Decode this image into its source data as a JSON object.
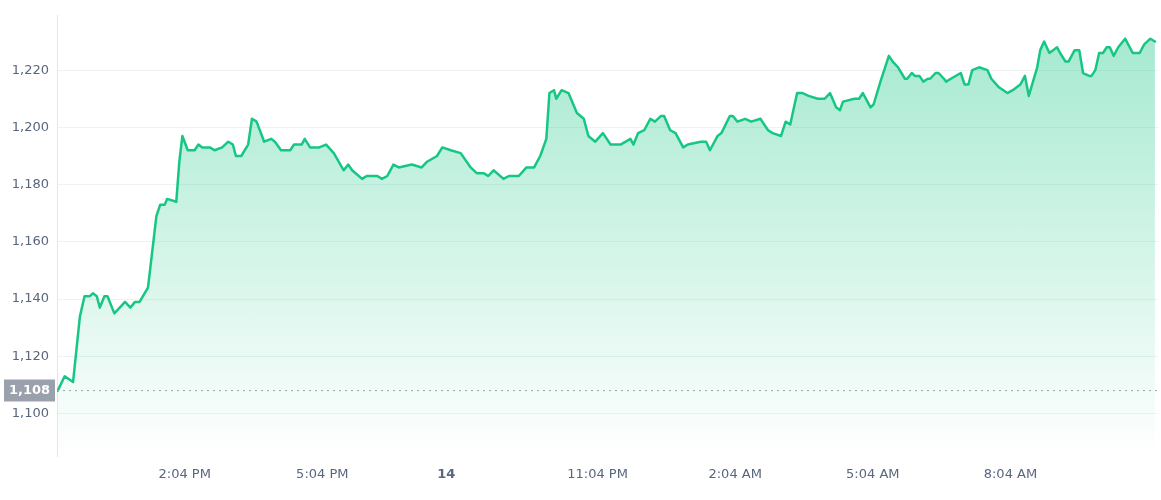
{
  "chart_data": {
    "type": "area",
    "x": [
      "--05-13T11:18",
      "--05-13T11:27",
      "--05-13T11:38",
      "--05-13T11:47",
      "--05-13T11:53",
      "--05-13T12:00",
      "--05-13T12:04",
      "--05-13T12:09",
      "--05-13T12:13",
      "--05-13T12:19",
      "--05-13T12:23",
      "--05-13T12:32",
      "--05-13T12:46",
      "--05-13T12:53",
      "--05-13T12:59",
      "--05-13T13:05",
      "--05-13T13:16",
      "--05-13T13:27",
      "--05-13T13:32",
      "--05-13T13:38",
      "--05-13T13:41",
      "--05-13T13:53",
      "--05-13T13:57",
      "--05-13T14:01",
      "--05-13T14:08",
      "--05-13T14:17",
      "--05-13T14:22",
      "--05-13T14:27",
      "--05-13T14:37",
      "--05-13T14:43",
      "--05-13T14:53",
      "--05-13T15:01",
      "--05-13T15:07",
      "--05-13T15:11",
      "--05-13T15:18",
      "--05-13T15:27",
      "--05-13T15:32",
      "--05-13T15:38",
      "--05-13T15:48",
      "--05-13T15:57",
      "--05-13T16:02",
      "--05-13T16:10",
      "--05-13T16:17",
      "--05-13T16:22",
      "--05-13T16:27",
      "--05-13T16:37",
      "--05-13T16:41",
      "--05-13T16:48",
      "--05-13T17:00",
      "--05-13T17:09",
      "--05-13T17:19",
      "--05-13T17:32",
      "--05-13T17:38",
      "--05-13T17:43",
      "--05-13T17:56",
      "--05-13T18:02",
      "--05-13T18:16",
      "--05-13T18:22",
      "--05-13T18:29",
      "--05-13T18:37",
      "--05-13T18:44",
      "--05-13T19:01",
      "--05-13T19:14",
      "--05-13T19:21",
      "--05-13T19:34",
      "--05-13T19:41",
      "--05-13T19:52",
      "--05-13T20:05",
      "--05-13T20:18",
      "--05-13T20:26",
      "--05-13T20:35",
      "--05-13T20:41",
      "--05-13T20:48",
      "--05-13T21:01",
      "--05-13T21:08",
      "--05-13T21:21",
      "--05-13T21:31",
      "--05-13T21:41",
      "--05-13T21:49",
      "--05-13T21:57",
      "--05-13T22:01",
      "--05-13T22:07",
      "--05-13T22:10",
      "--05-13T22:17",
      "--05-13T22:26",
      "--05-13T22:37",
      "--05-13T22:46",
      "--05-13T22:52",
      "--05-13T23:01",
      "--05-13T23:11",
      "--05-13T23:21",
      "--05-13T23:34",
      "--05-13T23:47",
      "--05-13T23:51",
      "--05-13T23:57",
      "--05-14T00:05",
      "--05-14T00:13",
      "--05-14T00:19",
      "--05-14T00:27",
      "--05-14T00:31",
      "--05-14T00:39",
      "--05-14T00:46",
      "--05-14T00:56",
      "--05-14T01:02",
      "--05-14T01:19",
      "--05-14T01:26",
      "--05-14T01:31",
      "--05-14T01:41",
      "--05-14T01:46",
      "--05-14T01:57",
      "--05-14T02:01",
      "--05-14T02:07",
      "--05-14T02:17",
      "--05-14T02:25",
      "--05-14T02:37",
      "--05-14T02:47",
      "--05-14T02:53",
      "--05-14T03:04",
      "--05-14T03:10",
      "--05-14T03:16",
      "--05-14T03:25",
      "--05-14T03:32",
      "--05-14T03:40",
      "--05-14T03:52",
      "--05-14T04:01",
      "--05-14T04:08",
      "--05-14T04:16",
      "--05-14T04:21",
      "--05-14T04:25",
      "--05-14T04:40",
      "--05-14T04:46",
      "--05-14T04:51",
      "--05-14T05:01",
      "--05-14T05:05",
      "--05-14T05:14",
      "--05-14T05:25",
      "--05-14T05:30",
      "--05-14T05:37",
      "--05-14T05:46",
      "--05-14T05:49",
      "--05-14T05:55",
      "--05-14T05:59",
      "--05-14T06:05",
      "--05-14T06:10",
      "--05-14T06:16",
      "--05-14T06:19",
      "--05-14T06:26",
      "--05-14T06:30",
      "--05-14T06:37",
      "--05-14T06:40",
      "--05-14T06:46",
      "--05-14T06:59",
      "--05-14T07:04",
      "--05-14T07:09",
      "--05-14T07:14",
      "--05-14T07:23",
      "--05-14T07:34",
      "--05-14T07:39",
      "--05-14T07:49",
      "--05-14T08:00",
      "--05-14T08:07",
      "--05-14T08:17",
      "--05-14T08:23",
      "--05-14T08:28",
      "--05-14T08:39",
      "--05-14T08:43",
      "--05-14T08:48",
      "--05-14T08:55",
      "--05-14T09:05",
      "--05-14T09:09",
      "--05-14T09:16",
      "--05-14T09:20",
      "--05-14T09:28",
      "--05-14T09:34",
      "--05-14T09:39",
      "--05-14T09:47",
      "--05-14T09:50",
      "--05-14T09:55",
      "--05-14T10:00",
      "--05-14T10:05",
      "--05-14T10:10",
      "--05-14T10:14",
      "--05-14T10:19",
      "--05-14T10:25",
      "--05-14T10:34",
      "--05-14T10:44",
      "--05-14T10:53",
      "--05-14T10:59",
      "--05-14T11:07",
      "--05-14T11:13"
    ],
    "series": [
      {
        "color": "#16c784",
        "values": [
          1108,
          1113,
          1111,
          1134,
          1141,
          1141,
          1142,
          1141,
          1137,
          1141,
          1141,
          1135,
          1139,
          1137,
          1139,
          1139,
          1144,
          1169,
          1173,
          1173,
          1175,
          1174,
          1188,
          1197,
          1192,
          1192,
          1194,
          1193,
          1193,
          1192,
          1193,
          1195,
          1194,
          1190,
          1190,
          1194,
          1203,
          1202,
          1195,
          1196,
          1195,
          1192,
          1192,
          1192,
          1194,
          1194,
          1196,
          1193,
          1193,
          1194,
          1191,
          1185,
          1187,
          1185,
          1182,
          1183,
          1183,
          1182,
          1183,
          1187,
          1186,
          1187,
          1186,
          1188,
          1190,
          1193,
          1192,
          1191,
          1186,
          1184,
          1184,
          1183,
          1185,
          1182,
          1183,
          1183,
          1186,
          1186,
          1190,
          1196,
          1212,
          1213,
          1210,
          1213,
          1212,
          1205,
          1203,
          1197,
          1195,
          1198,
          1194,
          1194,
          1196,
          1194,
          1198,
          1199,
          1203,
          1202,
          1204,
          1204,
          1199,
          1198,
          1193,
          1194,
          1195,
          1195,
          1192,
          1197,
          1198,
          1204,
          1204,
          1202,
          1203,
          1202,
          1203,
          1199,
          1198,
          1197,
          1202,
          1201,
          1212,
          1212,
          1211,
          1210,
          1210,
          1212,
          1207,
          1206,
          1209,
          1210,
          1210,
          1212,
          1207,
          1208,
          1216,
          1225,
          1223,
          1221,
          1217,
          1217,
          1219,
          1218,
          1218,
          1216,
          1217,
          1217,
          1219,
          1219,
          1217,
          1216,
          1217,
          1219,
          1215,
          1215,
          1220,
          1221,
          1220,
          1217,
          1214,
          1212,
          1213,
          1215,
          1218,
          1211,
          1221,
          1227,
          1230,
          1226,
          1228,
          1226,
          1223,
          1223,
          1227,
          1227,
          1219,
          1218,
          1218,
          1220,
          1226,
          1226,
          1228,
          1228,
          1225,
          1228,
          1231,
          1226,
          1226,
          1229,
          1231,
          1230
        ]
      }
    ],
    "xlim": [
      "--05-13T11:17",
      "--05-14T11:17"
    ],
    "xticks": [
      {
        "value": "--05-13T14:04",
        "label": "2:04 PM"
      },
      {
        "value": "--05-13T17:04",
        "label": "5:04 PM"
      },
      {
        "value": "--05-13T19:46",
        "label": "14"
      },
      {
        "value": "--05-13T23:04",
        "label": "11:04 PM"
      },
      {
        "value": "--05-14T02:04",
        "label": "2:04 AM"
      },
      {
        "value": "--05-14T05:04",
        "label": "5:04 AM"
      },
      {
        "value": "--05-14T08:04",
        "label": "8:04 AM"
      }
    ],
    "ylim": [
      1085,
      1239
    ],
    "yticks": [
      {
        "value": 1100,
        "label": "1,100"
      },
      {
        "value": 1120,
        "label": "1,120"
      },
      {
        "value": 1140,
        "label": "1,140"
      },
      {
        "value": 1160,
        "label": "1,160"
      },
      {
        "value": 1180,
        "label": "1,180"
      },
      {
        "value": 1200,
        "label": "1,200"
      },
      {
        "value": 1220,
        "label": "1,220"
      }
    ],
    "ref_lines": [
      {
        "axis": "y",
        "value": 1108,
        "label": "1,108",
        "color": "#9aa0ac",
        "line_style": "dotted"
      }
    ],
    "grid": "y",
    "legend": false,
    "marker": "none",
    "line_style": "solid"
  }
}
